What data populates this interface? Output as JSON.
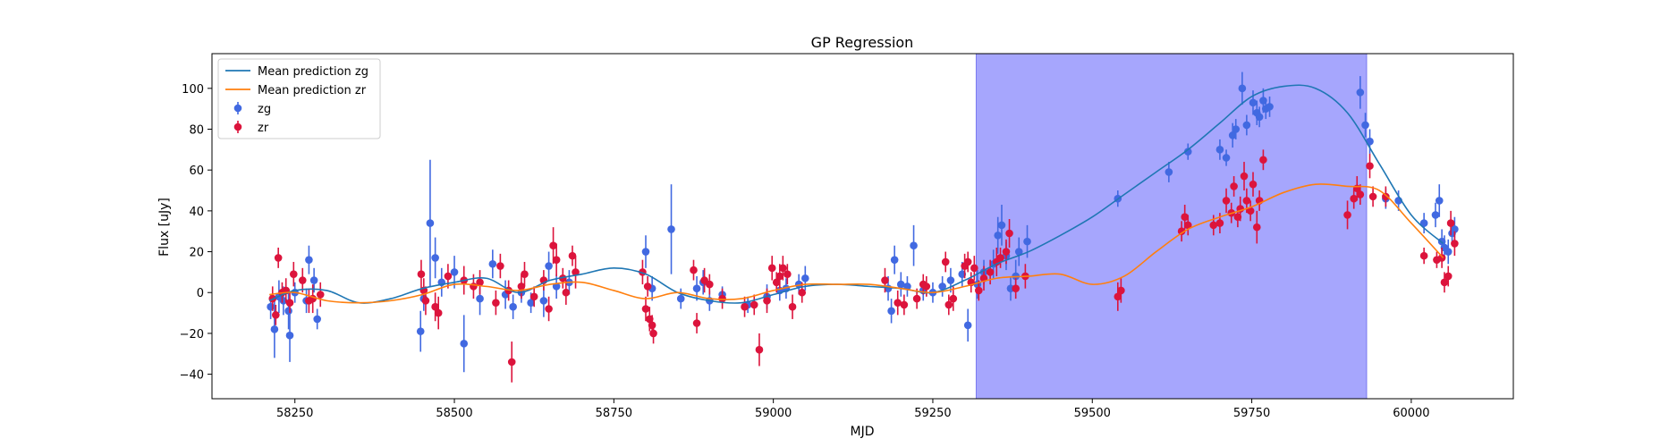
{
  "chart_data": {
    "type": "scatter",
    "title": "GP Regression",
    "xlabel": "MJD",
    "ylabel": "Flux [uJy]",
    "xlim": [
      58120,
      60160
    ],
    "ylim": [
      -52,
      117
    ],
    "xticks": [
      58250,
      58500,
      58750,
      59000,
      59250,
      59500,
      59750,
      60000
    ],
    "yticks": [
      -40,
      -20,
      0,
      20,
      40,
      60,
      80,
      100
    ],
    "grid": false,
    "legend_position": "top-left",
    "shaded_region": {
      "x_start": 59318,
      "x_end": 59930,
      "color": "#a6a6fd"
    },
    "colors": {
      "zg_line": "#1f77b4",
      "zr_line": "#ff7f0e",
      "zg_points": "#4169e1",
      "zr_points": "#dc143c"
    },
    "legend": [
      {
        "label": "Mean prediction zg",
        "kind": "line",
        "color": "#1f77b4"
      },
      {
        "label": "Mean prediction zr",
        "kind": "line",
        "color": "#ff7f0e"
      },
      {
        "label": "zg",
        "kind": "errorbar",
        "color": "#4169e1"
      },
      {
        "label": "zr",
        "kind": "errorbar",
        "color": "#dc143c"
      }
    ],
    "lines": [
      {
        "name": "Mean prediction zg",
        "color": "#1f77b4",
        "x": [
          58210,
          58250,
          58300,
          58350,
          58400,
          58450,
          58500,
          58550,
          58600,
          58650,
          58700,
          58750,
          58800,
          58850,
          58900,
          58950,
          59000,
          59050,
          59100,
          59150,
          59200,
          59250,
          59300,
          59350,
          59400,
          59450,
          59500,
          59550,
          59600,
          59650,
          59700,
          59750,
          59800,
          59850,
          59900,
          59950,
          60000,
          60050
        ],
        "y": [
          -4,
          1,
          1,
          -5,
          -3,
          2,
          5,
          7,
          0,
          6,
          9,
          12,
          9,
          0,
          -4,
          -5,
          -1,
          3,
          4,
          3,
          2,
          0,
          6,
          14,
          20,
          28,
          37,
          48,
          59,
          70,
          83,
          96,
          101,
          100,
          88,
          63,
          38,
          24
        ]
      },
      {
        "name": "Mean prediction zr",
        "color": "#ff7f0e",
        "x": [
          58210,
          58250,
          58300,
          58350,
          58400,
          58450,
          58500,
          58550,
          58600,
          58650,
          58700,
          58750,
          58800,
          58850,
          58900,
          58950,
          59000,
          59050,
          59100,
          59150,
          59200,
          59250,
          59300,
          59350,
          59400,
          59450,
          59500,
          59550,
          59600,
          59650,
          59700,
          59750,
          59800,
          59850,
          59900,
          59950,
          60000,
          60050
        ],
        "y": [
          -1,
          0,
          -4,
          -5,
          -4,
          -1,
          4,
          3,
          1,
          4,
          5,
          1,
          -3,
          0,
          -3,
          -3,
          1,
          4,
          4,
          4,
          2,
          0,
          3,
          7,
          8,
          9,
          4,
          8,
          20,
          31,
          37,
          42,
          49,
          53,
          52,
          50,
          34,
          17
        ]
      }
    ],
    "series": [
      {
        "name": "zg",
        "color": "#4169e1",
        "points": [
          [
            58212,
            -7,
            6
          ],
          [
            58218,
            -18,
            14
          ],
          [
            58225,
            -2,
            8
          ],
          [
            58232,
            -4,
            7
          ],
          [
            58240,
            -9,
            9
          ],
          [
            58242,
            -21,
            13
          ],
          [
            58250,
            0,
            5
          ],
          [
            58268,
            -4,
            6
          ],
          [
            58272,
            16,
            7
          ],
          [
            58280,
            6,
            6
          ],
          [
            58285,
            -13,
            5
          ],
          [
            58447,
            -19,
            10
          ],
          [
            58452,
            -3,
            6
          ],
          [
            58462,
            34,
            31
          ],
          [
            58470,
            17,
            10
          ],
          [
            58480,
            5,
            7
          ],
          [
            58500,
            10,
            8
          ],
          [
            58515,
            -25,
            14
          ],
          [
            58540,
            -3,
            8
          ],
          [
            58560,
            14,
            7
          ],
          [
            58580,
            -1,
            7
          ],
          [
            58592,
            -7,
            6
          ],
          [
            58605,
            0,
            5
          ],
          [
            58620,
            -5,
            5
          ],
          [
            58640,
            -4,
            8
          ],
          [
            58648,
            13,
            7
          ],
          [
            58660,
            3,
            6
          ],
          [
            58680,
            5,
            6
          ],
          [
            58800,
            20,
            8
          ],
          [
            58810,
            2,
            6
          ],
          [
            58840,
            31,
            22
          ],
          [
            58855,
            -3,
            5
          ],
          [
            58880,
            2,
            6
          ],
          [
            58890,
            5,
            6
          ],
          [
            58900,
            -4,
            5
          ],
          [
            58920,
            -1,
            4
          ],
          [
            58960,
            -6,
            4
          ],
          [
            58990,
            -2,
            6
          ],
          [
            59010,
            1,
            5
          ],
          [
            59020,
            2,
            5
          ],
          [
            59040,
            4,
            5
          ],
          [
            59050,
            7,
            6
          ],
          [
            59180,
            2,
            6
          ],
          [
            59185,
            -9,
            6
          ],
          [
            59190,
            16,
            7
          ],
          [
            59200,
            4,
            6
          ],
          [
            59210,
            3,
            5
          ],
          [
            59220,
            23,
            10
          ],
          [
            59235,
            1,
            5
          ],
          [
            59250,
            0,
            5
          ],
          [
            59265,
            3,
            5
          ],
          [
            59278,
            6,
            6
          ],
          [
            59296,
            9,
            6
          ],
          [
            59305,
            -16,
            8
          ],
          [
            59320,
            4,
            7
          ],
          [
            59330,
            10,
            6
          ],
          [
            59345,
            14,
            7
          ],
          [
            59352,
            28,
            9
          ],
          [
            59358,
            33,
            10
          ],
          [
            59365,
            18,
            7
          ],
          [
            59372,
            2,
            6
          ],
          [
            59380,
            8,
            8
          ],
          [
            59385,
            20,
            7
          ],
          [
            59398,
            25,
            8
          ],
          [
            59540,
            46,
            4
          ],
          [
            59620,
            59,
            5
          ],
          [
            59650,
            69,
            4
          ],
          [
            59700,
            70,
            5
          ],
          [
            59710,
            66,
            4
          ],
          [
            59720,
            77,
            6
          ],
          [
            59725,
            80,
            5
          ],
          [
            59735,
            100,
            8
          ],
          [
            59742,
            82,
            5
          ],
          [
            59752,
            93,
            6
          ],
          [
            59758,
            88,
            6
          ],
          [
            59762,
            86,
            5
          ],
          [
            59768,
            94,
            6
          ],
          [
            59772,
            90,
            5
          ],
          [
            59778,
            91,
            5
          ],
          [
            59920,
            98,
            8
          ],
          [
            59928,
            82,
            6
          ],
          [
            59935,
            74,
            6
          ],
          [
            59960,
            46,
            5
          ],
          [
            59980,
            45,
            5
          ],
          [
            60020,
            34,
            5
          ],
          [
            60038,
            38,
            6
          ],
          [
            60044,
            45,
            8
          ],
          [
            60048,
            25,
            6
          ],
          [
            60052,
            22,
            6
          ],
          [
            60058,
            20,
            6
          ],
          [
            60064,
            29,
            5
          ],
          [
            60068,
            31,
            6
          ]
        ]
      },
      {
        "name": "zr",
        "color": "#dc143c",
        "points": [
          [
            58215,
            -3,
            6
          ],
          [
            58220,
            -11,
            5
          ],
          [
            58224,
            17,
            5
          ],
          [
            58230,
            0,
            5
          ],
          [
            58236,
            1,
            6
          ],
          [
            58242,
            -5,
            5
          ],
          [
            58248,
            9,
            6
          ],
          [
            58262,
            6,
            6
          ],
          [
            58272,
            -4,
            6
          ],
          [
            58278,
            -3,
            7
          ],
          [
            58290,
            -1,
            6
          ],
          [
            58448,
            9,
            7
          ],
          [
            58452,
            1,
            6
          ],
          [
            58455,
            -4,
            7
          ],
          [
            58470,
            -7,
            7
          ],
          [
            58475,
            -10,
            8
          ],
          [
            58490,
            8,
            6
          ],
          [
            58515,
            6,
            7
          ],
          [
            58530,
            3,
            6
          ],
          [
            58540,
            5,
            6
          ],
          [
            58565,
            -5,
            6
          ],
          [
            58572,
            13,
            6
          ],
          [
            58585,
            1,
            5
          ],
          [
            58590,
            -34,
            10
          ],
          [
            58605,
            3,
            6
          ],
          [
            58610,
            9,
            6
          ],
          [
            58625,
            -2,
            5
          ],
          [
            58640,
            6,
            5
          ],
          [
            58648,
            -8,
            6
          ],
          [
            58655,
            23,
            9
          ],
          [
            58660,
            16,
            8
          ],
          [
            58670,
            7,
            5
          ],
          [
            58675,
            0,
            6
          ],
          [
            58685,
            18,
            5
          ],
          [
            58690,
            10,
            8
          ],
          [
            58795,
            10,
            6
          ],
          [
            58800,
            -8,
            6
          ],
          [
            58803,
            3,
            5
          ],
          [
            58806,
            -13,
            6
          ],
          [
            58810,
            -16,
            5
          ],
          [
            58812,
            -20,
            5
          ],
          [
            58875,
            11,
            5
          ],
          [
            58880,
            -15,
            5
          ],
          [
            58892,
            6,
            6
          ],
          [
            58900,
            4,
            5
          ],
          [
            58920,
            -3,
            5
          ],
          [
            58955,
            -7,
            5
          ],
          [
            58970,
            -6,
            5
          ],
          [
            58978,
            -28,
            8
          ],
          [
            58990,
            -4,
            6
          ],
          [
            58998,
            12,
            6
          ],
          [
            59005,
            5,
            5
          ],
          [
            59010,
            8,
            6
          ],
          [
            59015,
            12,
            6
          ],
          [
            59022,
            9,
            5
          ],
          [
            59030,
            -7,
            6
          ],
          [
            59045,
            0,
            5
          ],
          [
            59175,
            6,
            6
          ],
          [
            59195,
            -5,
            6
          ],
          [
            59205,
            -6,
            5
          ],
          [
            59225,
            -3,
            5
          ],
          [
            59235,
            4,
            5
          ],
          [
            59240,
            3,
            5
          ],
          [
            59270,
            15,
            5
          ],
          [
            59275,
            -6,
            5
          ],
          [
            59282,
            -3,
            6
          ],
          [
            59300,
            13,
            6
          ],
          [
            59305,
            15,
            5
          ],
          [
            59310,
            5,
            5
          ],
          [
            59315,
            12,
            6
          ],
          [
            59322,
            1,
            5
          ],
          [
            59330,
            7,
            6
          ],
          [
            59340,
            10,
            6
          ],
          [
            59350,
            15,
            7
          ],
          [
            59356,
            17,
            5
          ],
          [
            59365,
            20,
            6
          ],
          [
            59370,
            29,
            7
          ],
          [
            59380,
            2,
            5
          ],
          [
            59395,
            8,
            6
          ],
          [
            59540,
            -2,
            7
          ],
          [
            59545,
            1,
            6
          ],
          [
            59640,
            30,
            5
          ],
          [
            59645,
            37,
            6
          ],
          [
            59650,
            33,
            5
          ],
          [
            59690,
            33,
            5
          ],
          [
            59700,
            34,
            5
          ],
          [
            59710,
            45,
            6
          ],
          [
            59718,
            39,
            5
          ],
          [
            59722,
            52,
            5
          ],
          [
            59728,
            37,
            5
          ],
          [
            59732,
            41,
            6
          ],
          [
            59738,
            57,
            7
          ],
          [
            59742,
            45,
            6
          ],
          [
            59748,
            40,
            5
          ],
          [
            59752,
            53,
            6
          ],
          [
            59758,
            32,
            8
          ],
          [
            59762,
            45,
            5
          ],
          [
            59768,
            65,
            5
          ],
          [
            59900,
            38,
            7
          ],
          [
            59910,
            46,
            5
          ],
          [
            59915,
            51,
            6
          ],
          [
            59920,
            48,
            5
          ],
          [
            59935,
            62,
            6
          ],
          [
            59940,
            47,
            5
          ],
          [
            59960,
            47,
            5
          ],
          [
            60020,
            18,
            4
          ],
          [
            60040,
            16,
            4
          ],
          [
            60048,
            17,
            5
          ],
          [
            60052,
            5,
            5
          ],
          [
            60058,
            8,
            5
          ],
          [
            60062,
            34,
            6
          ],
          [
            60068,
            24,
            6
          ]
        ]
      }
    ]
  }
}
